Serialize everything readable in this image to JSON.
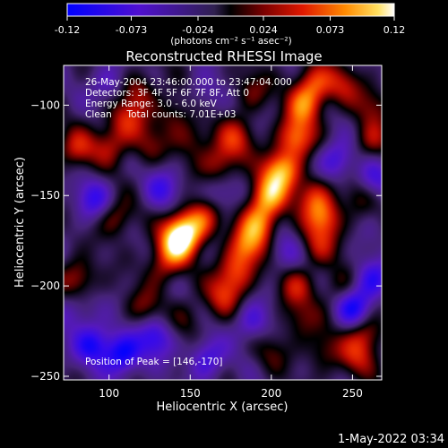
{
  "chart_data": {
    "type": "heatmap",
    "title": "Reconstructed RHESSI Image",
    "xlabel": "Heliocentric X (arcsec)",
    "ylabel": "Heliocentric Y (arcsec)",
    "xlim": [
      72,
      268
    ],
    "ylim": [
      -252,
      -78
    ],
    "xticks": [
      100,
      150,
      200,
      250
    ],
    "yticks": [
      -100,
      -150,
      -200,
      -250
    ],
    "colorbar": {
      "range": [
        -0.12,
        0.12
      ],
      "ticks": [
        "-0.12",
        "-0.073",
        "-0.024",
        "0.024",
        "0.073",
        "0.12"
      ],
      "unit": "(photons cm⁻² s⁻¹ asec⁻²)"
    },
    "info_lines": [
      "26-May-2004 23:46:00.000 to 23:47:04.000",
      "Detectors: 3F 4F 5F 6F 7F 8F, Att 0",
      "Energy Range: 3.0 - 6.0 keV",
      "Clean     Total counts: 7.01E+03"
    ],
    "peak_label": "Position of Peak = [146,-170]",
    "peak": [
      146,
      -170
    ],
    "blobs": [
      {
        "x": 146,
        "y": -170,
        "v": 0.12
      },
      {
        "x": 140,
        "y": -178,
        "v": 0.09
      },
      {
        "x": 158,
        "y": -162,
        "v": 0.07
      },
      {
        "x": 206,
        "y": -136,
        "v": 0.11
      },
      {
        "x": 198,
        "y": -150,
        "v": 0.1
      },
      {
        "x": 215,
        "y": -118,
        "v": 0.09
      },
      {
        "x": 192,
        "y": -165,
        "v": 0.09
      },
      {
        "x": 185,
        "y": -178,
        "v": 0.08
      },
      {
        "x": 178,
        "y": -192,
        "v": 0.07
      },
      {
        "x": 170,
        "y": -205,
        "v": 0.06
      },
      {
        "x": 220,
        "y": -100,
        "v": 0.08
      },
      {
        "x": 226,
        "y": -88,
        "v": 0.07
      },
      {
        "x": 232,
        "y": -162,
        "v": 0.08
      },
      {
        "x": 226,
        "y": -150,
        "v": 0.06
      },
      {
        "x": 228,
        "y": -178,
        "v": 0.05
      },
      {
        "x": 168,
        "y": -132,
        "v": 0.06
      },
      {
        "x": 178,
        "y": -118,
        "v": 0.06
      },
      {
        "x": 110,
        "y": -108,
        "v": 0.06
      },
      {
        "x": 100,
        "y": -122,
        "v": 0.05
      },
      {
        "x": 118,
        "y": -92,
        "v": 0.05
      },
      {
        "x": 80,
        "y": -124,
        "v": 0.06
      },
      {
        "x": 80,
        "y": -196,
        "v": 0.06
      },
      {
        "x": 104,
        "y": -162,
        "v": 0.05
      },
      {
        "x": 124,
        "y": -122,
        "v": 0.04
      },
      {
        "x": 140,
        "y": -104,
        "v": 0.04
      },
      {
        "x": 122,
        "y": -212,
        "v": 0.04
      },
      {
        "x": 148,
        "y": -218,
        "v": 0.03
      },
      {
        "x": 214,
        "y": -200,
        "v": 0.05
      },
      {
        "x": 218,
        "y": -218,
        "v": 0.04
      },
      {
        "x": 244,
        "y": -88,
        "v": 0.05
      },
      {
        "x": 262,
        "y": -120,
        "v": 0.05
      },
      {
        "x": 262,
        "y": -100,
        "v": 0.04
      },
      {
        "x": 254,
        "y": -150,
        "v": 0.04
      },
      {
        "x": 242,
        "y": -200,
        "v": 0.04
      },
      {
        "x": 258,
        "y": -226,
        "v": 0.06
      },
      {
        "x": 252,
        "y": -240,
        "v": 0.05
      },
      {
        "x": 232,
        "y": -235,
        "v": 0.04
      },
      {
        "x": 200,
        "y": -236,
        "v": 0.03
      },
      {
        "x": 152,
        "y": -118,
        "v": 0.04
      },
      {
        "x": 132,
        "y": -190,
        "v": 0.04
      },
      {
        "x": 188,
        "y": -92,
        "v": 0.04
      },
      {
        "x": 90,
        "y": -232,
        "v": -0.08
      },
      {
        "x": 108,
        "y": -238,
        "v": -0.09
      },
      {
        "x": 128,
        "y": -228,
        "v": -0.07
      },
      {
        "x": 160,
        "y": -240,
        "v": -0.06
      },
      {
        "x": 90,
        "y": -152,
        "v": -0.06
      },
      {
        "x": 250,
        "y": -212,
        "v": -0.08
      },
      {
        "x": 262,
        "y": -196,
        "v": -0.07
      },
      {
        "x": 240,
        "y": -130,
        "v": -0.06
      },
      {
        "x": 262,
        "y": -142,
        "v": -0.06
      },
      {
        "x": 132,
        "y": -146,
        "v": -0.05
      },
      {
        "x": 168,
        "y": -150,
        "v": -0.04
      },
      {
        "x": 100,
        "y": -88,
        "v": -0.04
      },
      {
        "x": 188,
        "y": -220,
        "v": -0.05
      },
      {
        "x": 208,
        "y": -182,
        "v": -0.04
      },
      {
        "x": 158,
        "y": -95,
        "v": -0.03
      },
      {
        "x": 78,
        "y": -214,
        "v": -0.04
      }
    ]
  },
  "footer": {
    "timestamp": "1-May-2022 03:34"
  }
}
